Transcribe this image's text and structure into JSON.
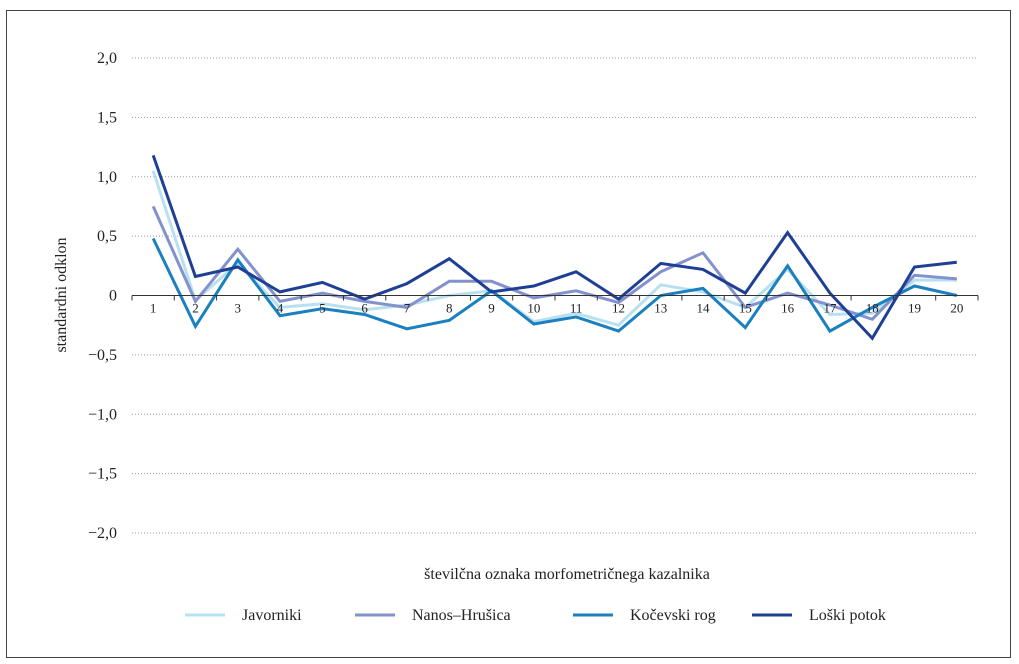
{
  "chart_data": {
    "type": "line",
    "xlabel": "številčna oznaka morfometričnega kazalnika",
    "ylabel": "standardni odklon",
    "ylim": [
      -2.0,
      2.0
    ],
    "yticks": [
      "2,0",
      "1,5",
      "1,0",
      "0,5",
      "0",
      "−0,5",
      "−1,0",
      "−1,5",
      "−2,0"
    ],
    "ytick_values": [
      2.0,
      1.5,
      1.0,
      0.5,
      0,
      -0.5,
      -1.0,
      -1.5,
      -2.0
    ],
    "categories": [
      "1",
      "2",
      "3",
      "4",
      "5",
      "6",
      "7",
      "8",
      "9",
      "10",
      "11",
      "12",
      "13",
      "14",
      "15",
      "16",
      "17",
      "18",
      "19",
      "20"
    ],
    "grid": "horizontal-dotted",
    "legend_position": "bottom",
    "series": [
      {
        "name": "Javorniki",
        "color": "#b9e0f0",
        "values": [
          1.05,
          -0.04,
          0.27,
          -0.1,
          -0.07,
          -0.12,
          -0.08,
          0.0,
          0.04,
          -0.22,
          -0.15,
          -0.25,
          0.09,
          0.03,
          -0.1,
          0.22,
          -0.16,
          -0.15,
          0.13,
          0.13
        ]
      },
      {
        "name": "Nanos–Hrušica",
        "color": "#8392cc",
        "values": [
          0.75,
          -0.05,
          0.39,
          -0.05,
          0.02,
          -0.05,
          -0.1,
          0.12,
          0.12,
          -0.02,
          0.04,
          -0.06,
          0.2,
          0.36,
          -0.1,
          0.02,
          -0.08,
          -0.2,
          0.17,
          0.14
        ]
      },
      {
        "name": "Kočevski rog",
        "color": "#1a80bf",
        "values": [
          0.48,
          -0.26,
          0.3,
          -0.17,
          -0.11,
          -0.16,
          -0.28,
          -0.21,
          0.04,
          -0.24,
          -0.18,
          -0.3,
          0.0,
          0.06,
          -0.27,
          0.25,
          -0.3,
          -0.1,
          0.08,
          0.0
        ]
      },
      {
        "name": "Loški potok",
        "color": "#1f3f95",
        "values": [
          1.18,
          0.16,
          0.24,
          0.03,
          0.11,
          -0.03,
          0.1,
          0.31,
          0.03,
          0.08,
          0.2,
          -0.03,
          0.27,
          0.22,
          0.02,
          0.53,
          0.02,
          -0.36,
          0.24,
          0.28
        ]
      }
    ]
  }
}
